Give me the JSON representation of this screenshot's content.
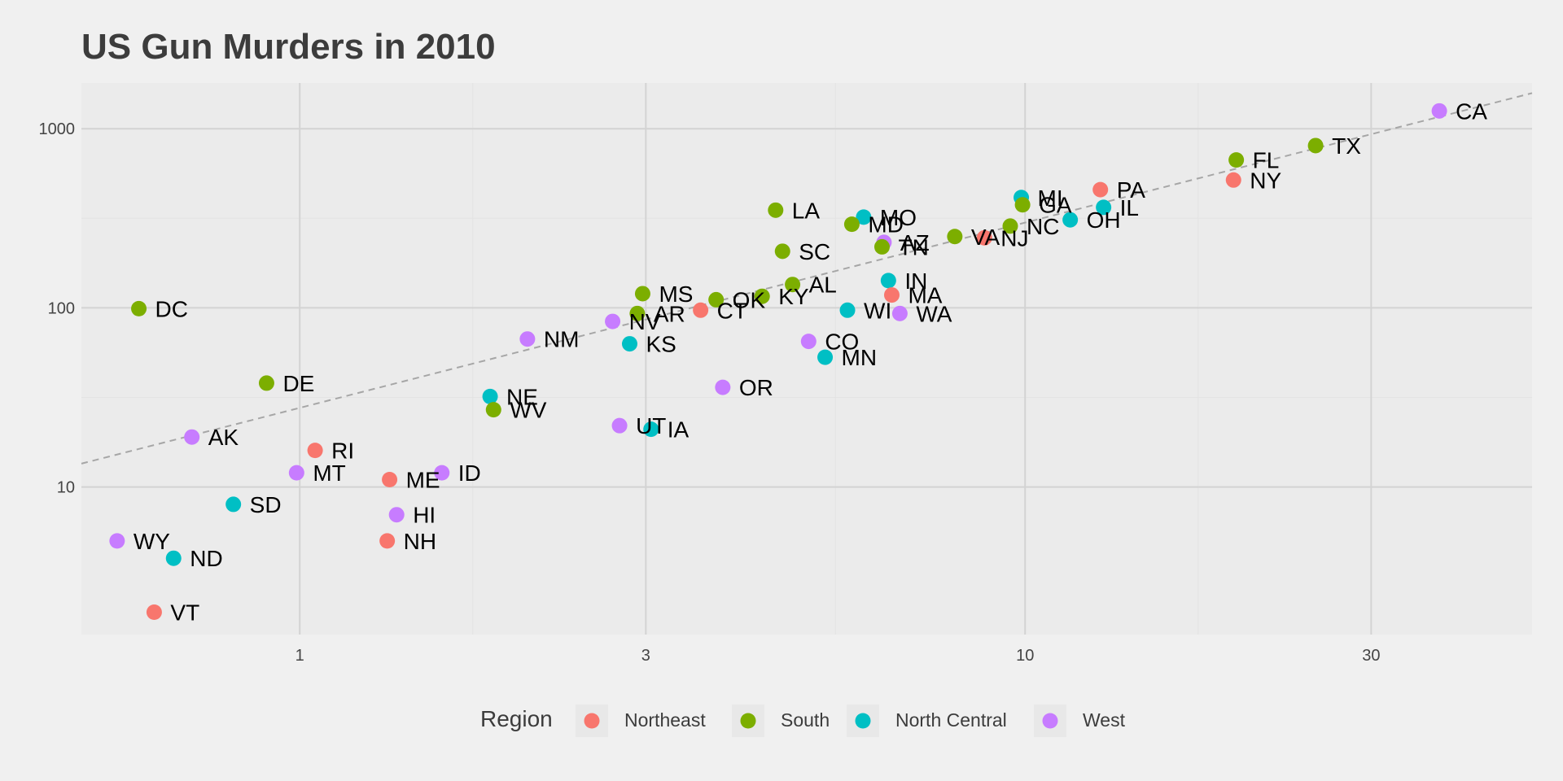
{
  "chart_data": {
    "type": "scatter",
    "title": "US Gun Murders in 2010",
    "xlabel": "",
    "ylabel": "",
    "xscale": "log10",
    "yscale": "log10",
    "xlim": [
      0.5,
      50
    ],
    "ylim": [
      1.5,
      1800
    ],
    "x_ticks": [
      1,
      3,
      10,
      30
    ],
    "x_tick_labels": [
      "1",
      "3",
      "10",
      "30"
    ],
    "y_ticks": [
      10,
      100,
      1000
    ],
    "y_tick_labels": [
      "10",
      "100",
      "1000"
    ],
    "grid": true,
    "reference_line": {
      "style": "dashed",
      "color": "#a6a6a6",
      "x_range": [
        0.5,
        50
      ],
      "y_range": [
        13.5,
        1580
      ]
    },
    "legend": {
      "title": "Region",
      "position": "bottom",
      "entries": [
        {
          "label": "Northeast",
          "color": "#f8766d"
        },
        {
          "label": "South",
          "color": "#7cae00"
        },
        {
          "label": "North Central",
          "color": "#00bfc4"
        },
        {
          "label": "West",
          "color": "#c77cff"
        }
      ]
    },
    "points": [
      {
        "label": "CA",
        "x": 37.25,
        "y": 1257,
        "region": "West"
      },
      {
        "label": "TX",
        "x": 25.15,
        "y": 805,
        "region": "South"
      },
      {
        "label": "FL",
        "x": 19.55,
        "y": 669,
        "region": "South"
      },
      {
        "label": "NY",
        "x": 19.38,
        "y": 517,
        "region": "Northeast"
      },
      {
        "label": "PA",
        "x": 12.7,
        "y": 457,
        "region": "Northeast"
      },
      {
        "label": "MI",
        "x": 9.88,
        "y": 413,
        "region": "North Central"
      },
      {
        "label": "GA",
        "x": 9.92,
        "y": 376,
        "region": "South"
      },
      {
        "label": "IL",
        "x": 12.83,
        "y": 364,
        "region": "North Central"
      },
      {
        "label": "OH",
        "x": 11.54,
        "y": 310,
        "region": "North Central"
      },
      {
        "label": "NC",
        "x": 9.54,
        "y": 286,
        "region": "South"
      },
      {
        "label": "NJ",
        "x": 8.79,
        "y": 246,
        "region": "Northeast"
      },
      {
        "label": "VA",
        "x": 8.0,
        "y": 250,
        "region": "South"
      },
      {
        "label": "LA",
        "x": 4.53,
        "y": 351,
        "region": "South"
      },
      {
        "label": "MO",
        "x": 5.99,
        "y": 321,
        "region": "North Central"
      },
      {
        "label": "MD",
        "x": 5.77,
        "y": 293,
        "region": "South"
      },
      {
        "label": "AZ",
        "x": 6.39,
        "y": 232,
        "region": "West"
      },
      {
        "label": "TN",
        "x": 6.35,
        "y": 219,
        "region": "South"
      },
      {
        "label": "SC",
        "x": 4.63,
        "y": 207,
        "region": "South"
      },
      {
        "label": "IN",
        "x": 6.48,
        "y": 142,
        "region": "North Central"
      },
      {
        "label": "AL",
        "x": 4.78,
        "y": 135,
        "region": "South"
      },
      {
        "label": "MA",
        "x": 6.55,
        "y": 118,
        "region": "Northeast"
      },
      {
        "label": "KY",
        "x": 4.34,
        "y": 116,
        "region": "South"
      },
      {
        "label": "OK",
        "x": 3.75,
        "y": 111,
        "region": "South"
      },
      {
        "label": "WI",
        "x": 5.69,
        "y": 97,
        "region": "North Central"
      },
      {
        "label": "WA",
        "x": 6.72,
        "y": 93,
        "region": "West"
      },
      {
        "label": "CT",
        "x": 3.57,
        "y": 97,
        "region": "Northeast"
      },
      {
        "label": "MS",
        "x": 2.97,
        "y": 120,
        "region": "South"
      },
      {
        "label": "AR",
        "x": 2.92,
        "y": 93,
        "region": "South"
      },
      {
        "label": "NV",
        "x": 2.7,
        "y": 84,
        "region": "West"
      },
      {
        "label": "NM",
        "x": 2.06,
        "y": 67,
        "region": "West"
      },
      {
        "label": "KS",
        "x": 2.85,
        "y": 63,
        "region": "North Central"
      },
      {
        "label": "CO",
        "x": 5.03,
        "y": 65,
        "region": "West"
      },
      {
        "label": "MN",
        "x": 5.3,
        "y": 53,
        "region": "North Central"
      },
      {
        "label": "OR",
        "x": 3.83,
        "y": 36,
        "region": "West"
      },
      {
        "label": "NE",
        "x": 1.83,
        "y": 32,
        "region": "North Central"
      },
      {
        "label": "WV",
        "x": 1.85,
        "y": 27,
        "region": "South"
      },
      {
        "label": "UT",
        "x": 2.76,
        "y": 22,
        "region": "West"
      },
      {
        "label": "IA",
        "x": 3.05,
        "y": 21,
        "region": "North Central"
      },
      {
        "label": "DC",
        "x": 0.6,
        "y": 99,
        "region": "South"
      },
      {
        "label": "DE",
        "x": 0.9,
        "y": 38,
        "region": "South"
      },
      {
        "label": "AK",
        "x": 0.71,
        "y": 19,
        "region": "West"
      },
      {
        "label": "RI",
        "x": 1.05,
        "y": 16,
        "region": "Northeast"
      },
      {
        "label": "MT",
        "x": 0.99,
        "y": 12,
        "region": "West"
      },
      {
        "label": "ME",
        "x": 1.33,
        "y": 11,
        "region": "Northeast"
      },
      {
        "label": "ID",
        "x": 1.57,
        "y": 12,
        "region": "West"
      },
      {
        "label": "SD",
        "x": 0.81,
        "y": 8,
        "region": "North Central"
      },
      {
        "label": "HI",
        "x": 1.36,
        "y": 7,
        "region": "West"
      },
      {
        "label": "NH",
        "x": 1.32,
        "y": 5,
        "region": "Northeast"
      },
      {
        "label": "WY",
        "x": 0.56,
        "y": 5,
        "region": "West"
      },
      {
        "label": "ND",
        "x": 0.67,
        "y": 4,
        "region": "North Central"
      },
      {
        "label": "VT",
        "x": 0.63,
        "y": 2,
        "region": "Northeast"
      }
    ]
  }
}
